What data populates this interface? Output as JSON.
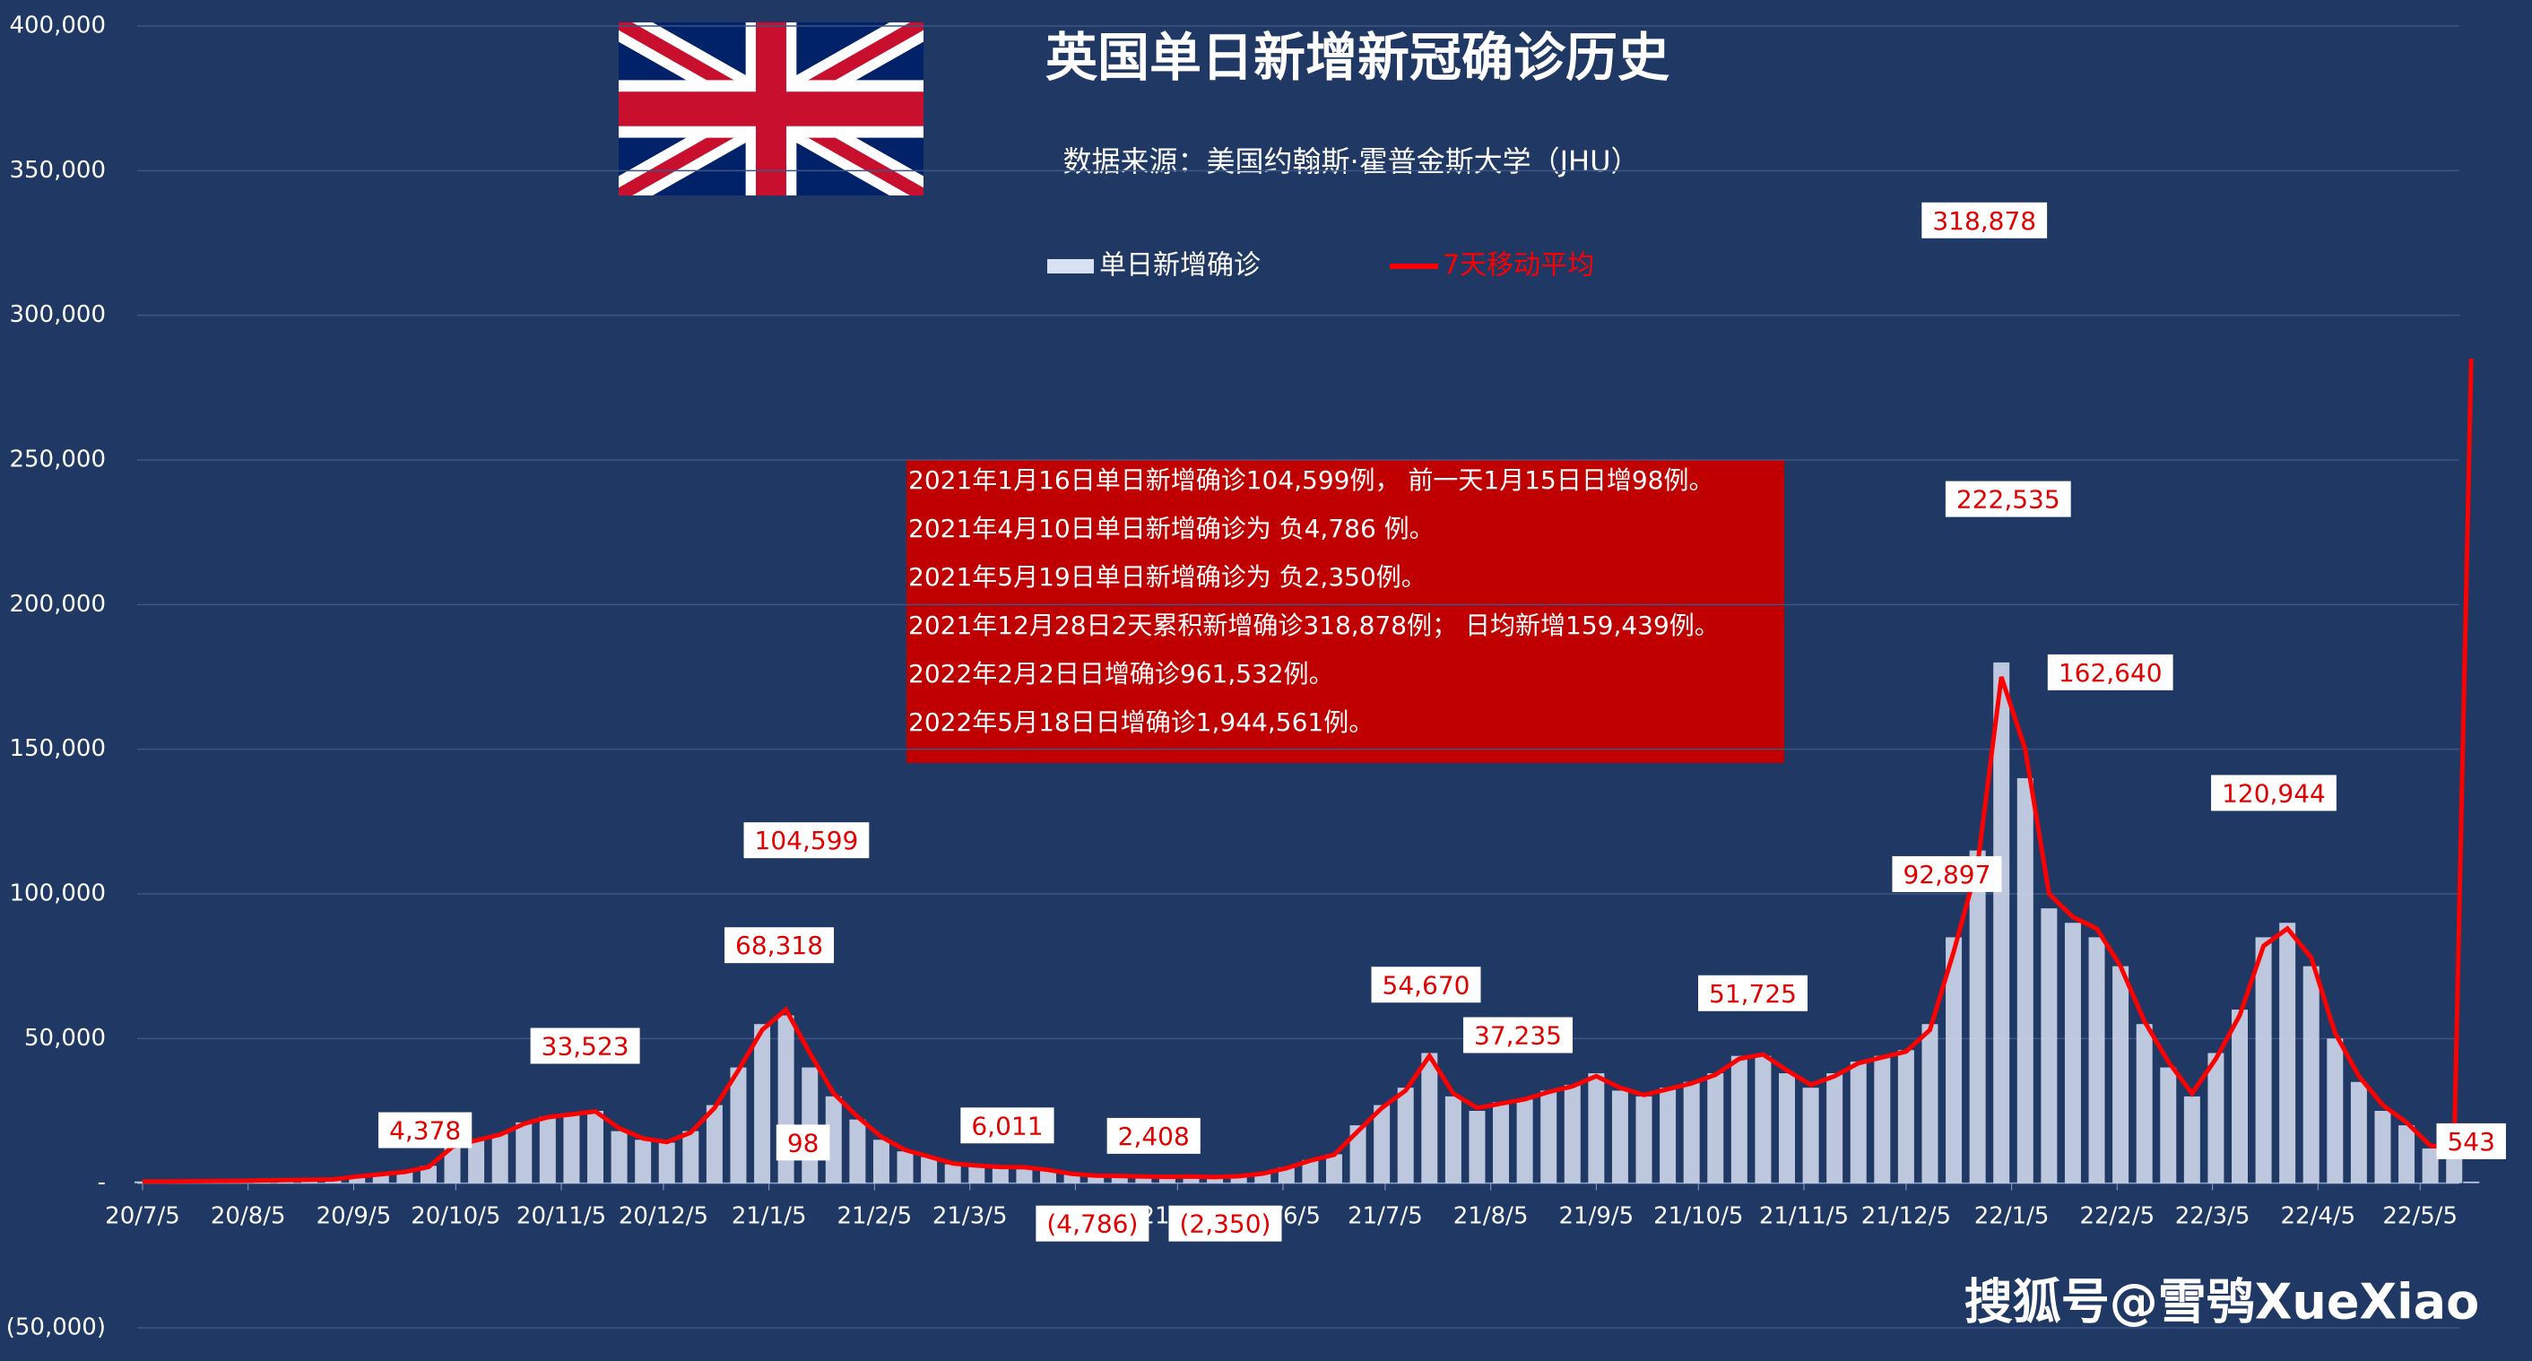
{
  "chart_data": {
    "type": "bar_line",
    "title": "英国单日新增新冠确诊历史",
    "subtitle": "数据来源：美国约翰斯·霍普金斯大学（JHU）",
    "notes": [
      "2021年1月16日单日新增确诊104,599例， 前一天1月15日日增98例。",
      "2021年4月10日单日新增确诊为 负4,786 例。",
      "2021年5月19日单日新增确诊为 负2,350例。",
      "2021年12月28日2天累积新增确诊318,878例； 日均新增159,439例。",
      "2022年2月2日日增确诊961,532例。",
      "2022年5月18日日增确诊1,944,561例。"
    ],
    "watermark": "搜狐号@雪鸮XueXiao",
    "x": [
      "2020-07-05",
      "2020-07-12",
      "2020-07-19",
      "2020-07-26",
      "2020-08-02",
      "2020-08-09",
      "2020-08-16",
      "2020-08-23",
      "2020-08-30",
      "2020-09-06",
      "2020-09-13",
      "2020-09-20",
      "2020-09-27",
      "2020-10-04",
      "2020-10-11",
      "2020-10-18",
      "2020-10-25",
      "2020-11-01",
      "2020-11-08",
      "2020-11-15",
      "2020-11-22",
      "2020-11-29",
      "2020-12-06",
      "2020-12-13",
      "2020-12-20",
      "2020-12-27",
      "2021-01-03",
      "2021-01-10",
      "2021-01-17",
      "2021-01-24",
      "2021-01-31",
      "2021-02-07",
      "2021-02-14",
      "2021-02-21",
      "2021-02-28",
      "2021-03-07",
      "2021-03-14",
      "2021-03-21",
      "2021-03-28",
      "2021-04-04",
      "2021-04-11",
      "2021-04-18",
      "2021-04-25",
      "2021-05-02",
      "2021-05-09",
      "2021-05-16",
      "2021-05-23",
      "2021-05-30",
      "2021-06-06",
      "2021-06-13",
      "2021-06-20",
      "2021-06-27",
      "2021-07-04",
      "2021-07-11",
      "2021-07-18",
      "2021-07-25",
      "2021-08-01",
      "2021-08-08",
      "2021-08-15",
      "2021-08-22",
      "2021-08-29",
      "2021-09-05",
      "2021-09-12",
      "2021-09-19",
      "2021-09-26",
      "2021-10-03",
      "2021-10-10",
      "2021-10-17",
      "2021-10-24",
      "2021-10-31",
      "2021-11-07",
      "2021-11-14",
      "2021-11-21",
      "2021-11-28",
      "2021-12-05",
      "2021-12-12",
      "2021-12-19",
      "2021-12-26",
      "2022-01-02",
      "2022-01-09",
      "2022-01-16",
      "2022-01-23",
      "2022-01-30",
      "2022-02-06",
      "2022-02-13",
      "2022-02-20",
      "2022-02-27",
      "2022-03-06",
      "2022-03-13",
      "2022-03-20",
      "2022-03-27",
      "2022-04-03",
      "2022-04-10",
      "2022-04-17",
      "2022-04-24",
      "2022-05-01",
      "2022-05-08",
      "2022-05-15",
      "2022-05-20"
    ],
    "series": [
      {
        "name": "单日新增确诊",
        "color": "#d9e1f2",
        "values": [
          600,
          650,
          700,
          750,
          800,
          1000,
          1100,
          1200,
          1300,
          2500,
          3300,
          4000,
          6000,
          13000,
          15000,
          17000,
          21000,
          23000,
          24000,
          25000,
          18000,
          15000,
          14000,
          18000,
          27000,
          40000,
          55000,
          58000,
          40000,
          30000,
          22000,
          15000,
          11000,
          9000,
          6500,
          6000,
          5500,
          5500,
          4500,
          3000,
          2500,
          2500,
          2200,
          2200,
          2300,
          2000,
          2500,
          3500,
          5500,
          8000,
          10000,
          20000,
          27000,
          33000,
          45000,
          30000,
          25000,
          28000,
          29000,
          32000,
          34000,
          38000,
          32000,
          30000,
          33000,
          35000,
          38000,
          44000,
          44000,
          38000,
          33000,
          38000,
          42000,
          44000,
          46000,
          55000,
          85000,
          115000,
          180000,
          140000,
          95000,
          90000,
          85000,
          75000,
          55000,
          40000,
          30000,
          45000,
          60000,
          85000,
          90000,
          75000,
          50000,
          35000,
          25000,
          20000,
          12000,
          12000,
          543
        ]
      },
      {
        "name": "7天移动平均",
        "color": "#ff0000",
        "values": [
          600,
          620,
          680,
          730,
          790,
          950,
          1080,
          1180,
          1280,
          2300,
          3100,
          3900,
          5600,
          12500,
          14800,
          16800,
          20500,
          22800,
          23800,
          24800,
          19000,
          15500,
          14200,
          17500,
          26000,
          39000,
          53000,
          60000,
          45000,
          31000,
          23000,
          16000,
          11500,
          9200,
          6800,
          6100,
          5600,
          5500,
          4600,
          3200,
          2600,
          2500,
          2300,
          2200,
          2300,
          2100,
          2400,
          3300,
          5200,
          7800,
          9800,
          18000,
          26000,
          32000,
          44000,
          31000,
          26000,
          27500,
          29000,
          31500,
          33500,
          37000,
          33000,
          30500,
          32500,
          34500,
          37500,
          43000,
          44500,
          39000,
          34000,
          37000,
          41500,
          43500,
          45500,
          53000,
          80000,
          110000,
          175000,
          150000,
          100000,
          92000,
          88000,
          75000,
          56000,
          42000,
          31000,
          43000,
          58000,
          82000,
          88000,
          78000,
          52000,
          37000,
          27000,
          21000,
          13000,
          12000,
          285000
        ]
      }
    ],
    "annotations": [
      {
        "x": "2020-09-26",
        "value": 4378,
        "label": "4,378"
      },
      {
        "x": "2020-11-12",
        "value": 33523,
        "label": "33,523"
      },
      {
        "x": "2021-01-08",
        "value": 68318,
        "label": "68,318"
      },
      {
        "x": "2021-01-16",
        "value": 104599,
        "label": "104,599"
      },
      {
        "x": "2021-01-15",
        "value": 98
      },
      {
        "x": "2021-03-16",
        "value": 6011,
        "label": "6,011"
      },
      {
        "x": "2021-04-10",
        "value": -4786,
        "label": "(4,786)"
      },
      {
        "x": "2021-04-28",
        "value": 2408,
        "label": "2,408"
      },
      {
        "x": "2021-05-19",
        "value": -2350,
        "label": "(2,350)"
      },
      {
        "x": "2021-07-17",
        "value": 54670,
        "label": "54,670"
      },
      {
        "x": "2021-08-13",
        "value": 37235,
        "label": "37,235"
      },
      {
        "x": "2021-10-21",
        "value": 51725,
        "label": "51,725"
      },
      {
        "x": "2021-12-17",
        "value": 92897,
        "label": "92,897"
      },
      {
        "x": "2021-12-28",
        "value": 318878,
        "label": "318,878"
      },
      {
        "x": "2022-01-04",
        "value": 222535,
        "label": "222,535"
      },
      {
        "x": "2022-02-03",
        "value": 162640,
        "label": "162,640"
      },
      {
        "x": "2022-03-23",
        "value": 120944,
        "label": "120,944"
      },
      {
        "x": "2022-05-20",
        "value": 543
      }
    ],
    "xlim": [
      "2020-07-05",
      "2022-05-21"
    ],
    "xticks": [
      {
        "value": "2020-07-05",
        "label": "20/7/5"
      },
      {
        "value": "2020-08-05",
        "label": "20/8/5"
      },
      {
        "value": "2020-09-05",
        "label": "20/9/5"
      },
      {
        "value": "2020-10-05",
        "label": "20/10/5"
      },
      {
        "value": "2020-11-05",
        "label": "20/11/5"
      },
      {
        "value": "2020-12-05",
        "label": "20/12/5"
      },
      {
        "value": "2021-01-05",
        "label": "21/1/5"
      },
      {
        "value": "2021-02-05",
        "label": "21/2/5"
      },
      {
        "value": "2021-03-05",
        "label": "21/3/5"
      },
      {
        "value": "2021-04-05",
        "label": "21/4/5"
      },
      {
        "value": "2021-05-05",
        "label": "21/5/5"
      },
      {
        "value": "2021-06-05",
        "label": "21/6/5"
      },
      {
        "value": "2021-07-05",
        "label": "21/7/5"
      },
      {
        "value": "2021-08-05",
        "label": "21/8/5"
      },
      {
        "value": "2021-09-05",
        "label": "21/9/5"
      },
      {
        "value": "2021-10-05",
        "label": "21/10/5"
      },
      {
        "value": "2021-11-05",
        "label": "21/11/5"
      },
      {
        "value": "2021-12-05",
        "label": "21/12/5"
      },
      {
        "value": "2022-01-05",
        "label": "22/1/5"
      },
      {
        "value": "2022-02-05",
        "label": "22/2/5"
      },
      {
        "value": "2022-03-05",
        "label": "22/3/5"
      },
      {
        "value": "2022-04-05",
        "label": "22/4/5"
      },
      {
        "value": "2022-05-05",
        "label": "22/5/5"
      }
    ],
    "ylim": [
      -50000,
      400000
    ],
    "yticks": [
      {
        "value": -50000,
        "label": "(50,000)"
      },
      {
        "value": 0,
        "label": "-"
      },
      {
        "value": 50000,
        "label": "50,000"
      },
      {
        "value": 100000,
        "label": "100,000"
      },
      {
        "value": 150000,
        "label": "150,000"
      },
      {
        "value": 200000,
        "label": "200,000"
      },
      {
        "value": 250000,
        "label": "250,000"
      },
      {
        "value": 300000,
        "label": "300,000"
      },
      {
        "value": 350000,
        "label": "350,000"
      },
      {
        "value": 400000,
        "label": "400,000"
      }
    ],
    "grid": true
  }
}
